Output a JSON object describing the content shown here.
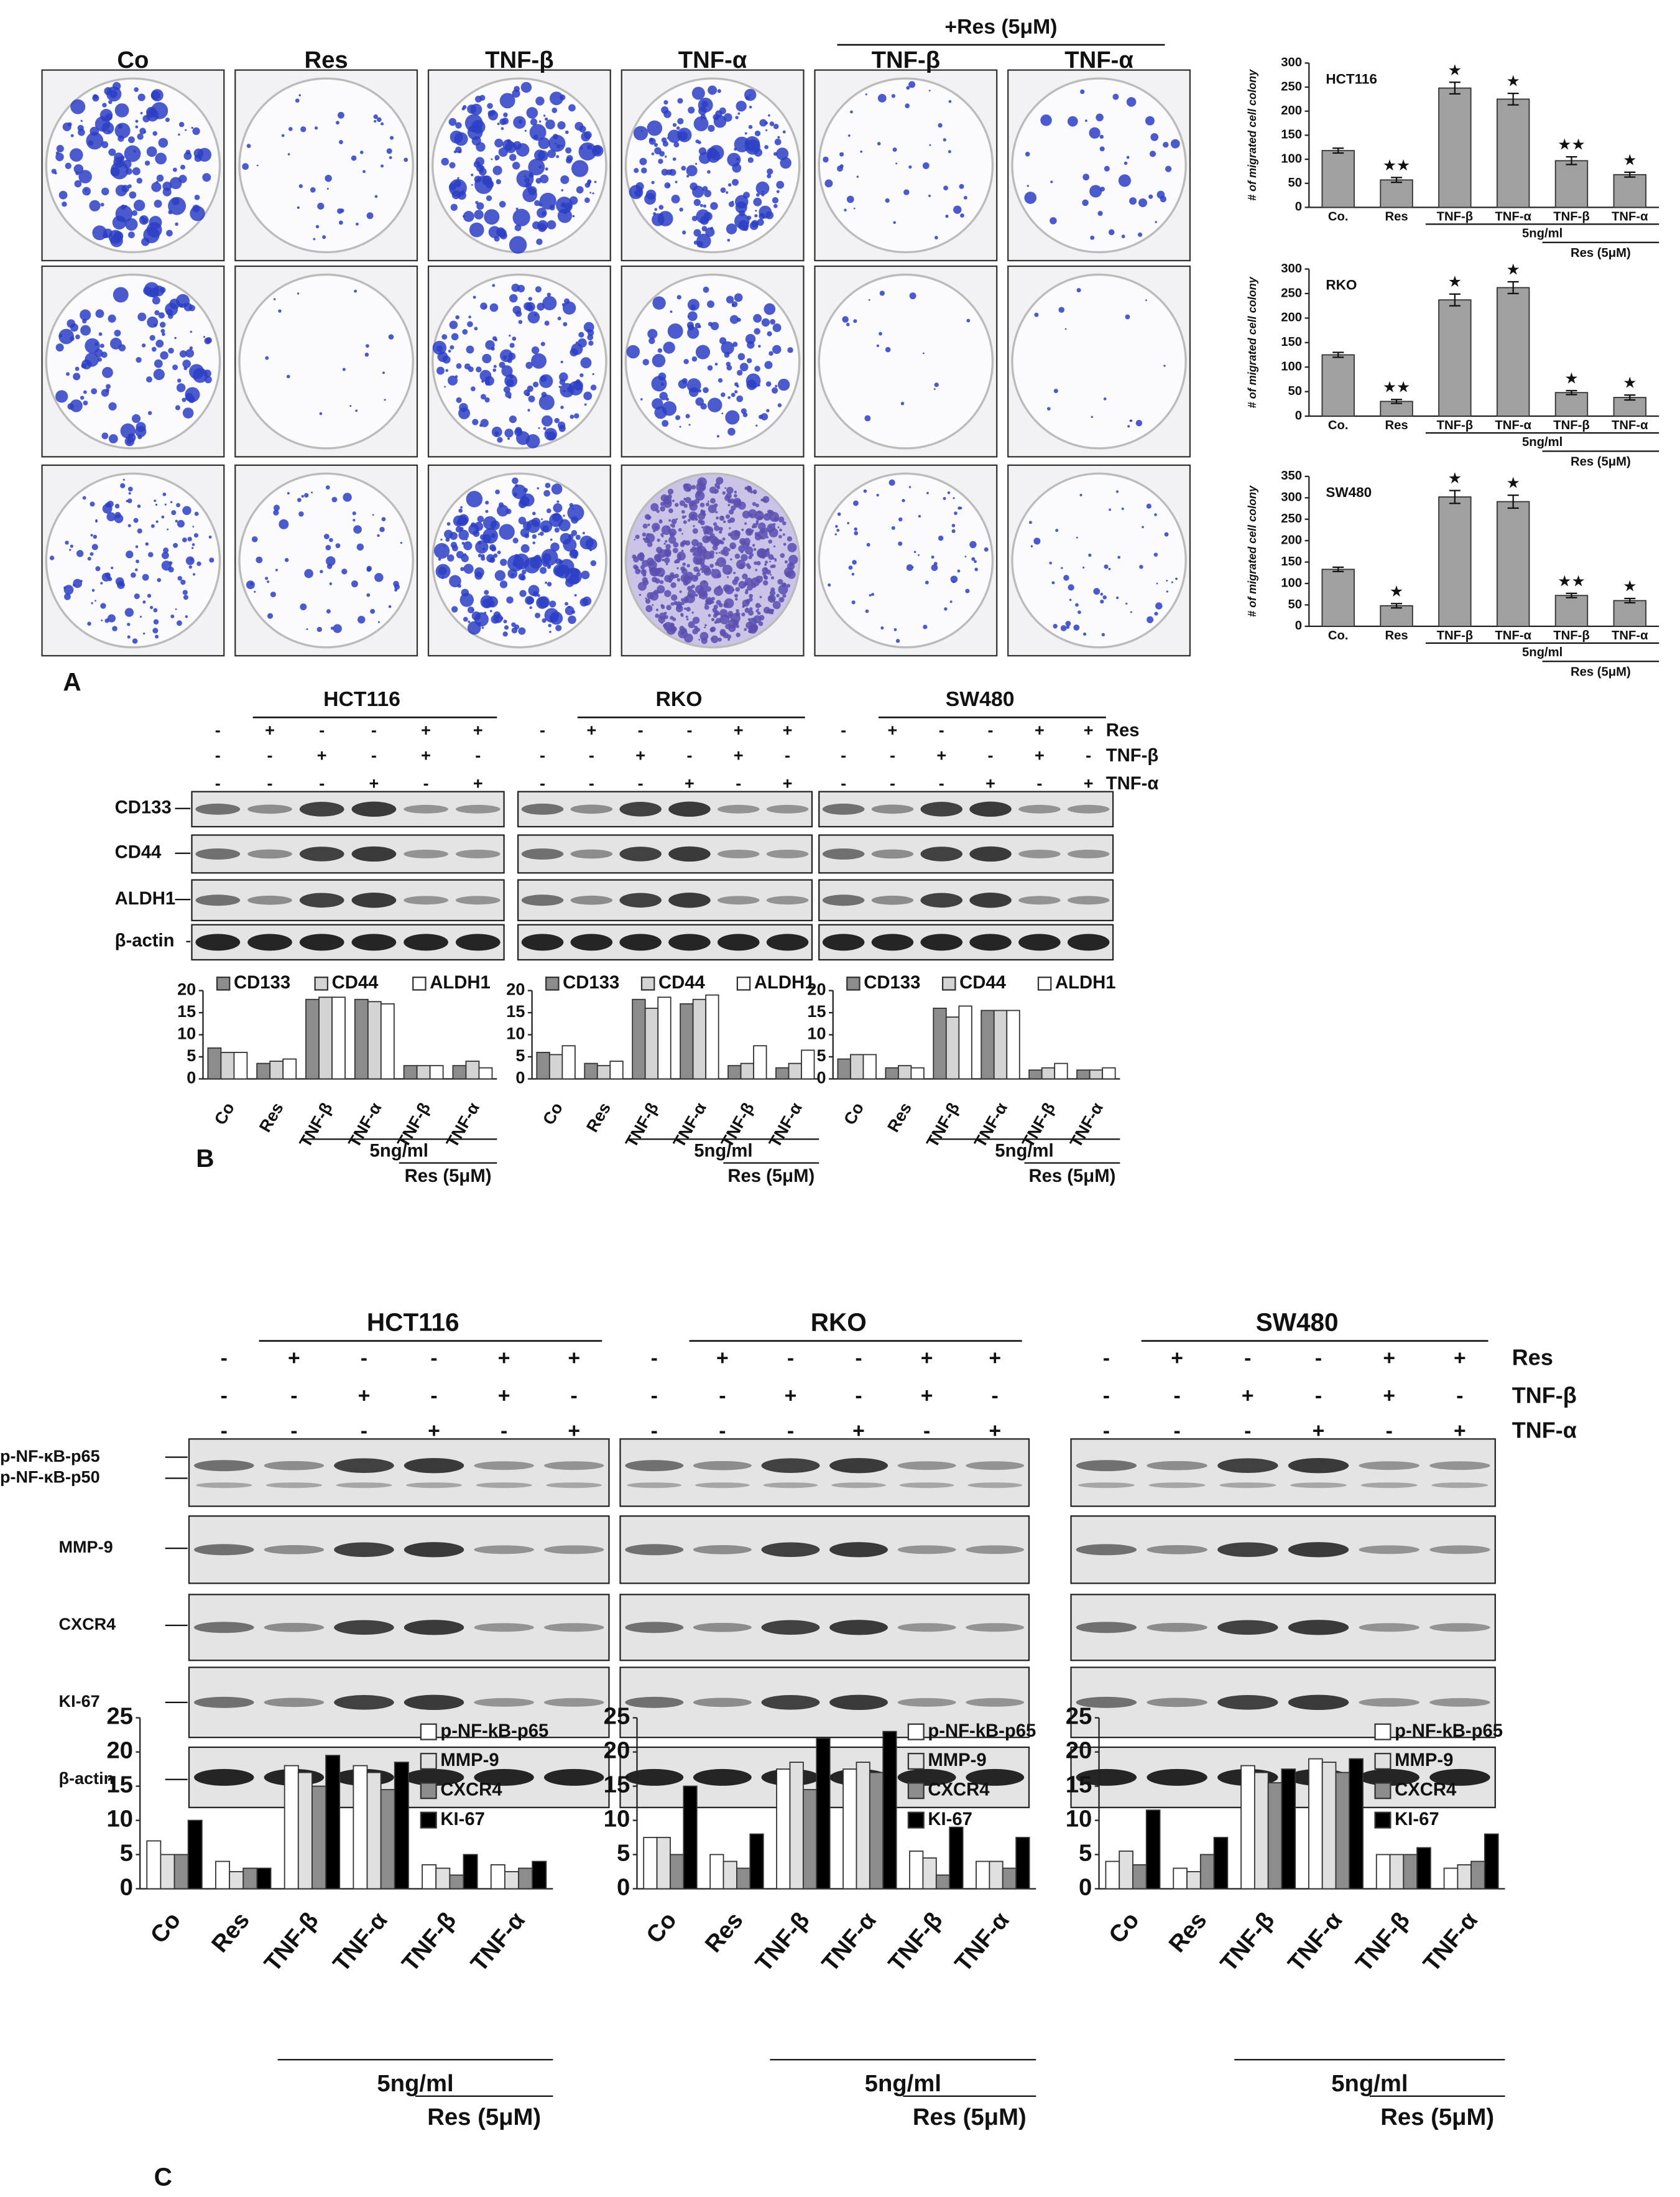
{
  "panel_labels": [
    "A",
    "B",
    "C"
  ],
  "colony_assay": {
    "columns": [
      "Co",
      "Res",
      "TNF-β",
      "TNF-α",
      "TNF-β",
      "TNF-α"
    ],
    "group_label": "+Res (5μM)"
  },
  "treatments": [
    {
      "name": "Res",
      "signs": [
        "-",
        "+",
        "-",
        "-",
        "+",
        "+"
      ]
    },
    {
      "name": "TNF-β",
      "signs": [
        "-",
        "-",
        "+",
        "-",
        "+",
        "-"
      ]
    },
    {
      "name": "TNF-α",
      "signs": [
        "-",
        "-",
        "-",
        "+",
        "-",
        "+"
      ]
    }
  ],
  "blot_b": {
    "cell_lines": [
      "HCT116",
      "RKO",
      "SW480"
    ],
    "proteins": [
      "CD133",
      "CD44",
      "ALDH1",
      "β-actin"
    ]
  },
  "blot_c": {
    "cell_lines": [
      "HCT116",
      "RKO",
      "SW480"
    ],
    "proteins": [
      "p-NF-κB-p65",
      "p-NF-κB-p50",
      "MMP-9",
      "CXCR4",
      "KI-67",
      "β-actin"
    ]
  },
  "chart_data": [
    {
      "type": "bar",
      "title": "HCT116",
      "y_label": "# of migrated cell colony",
      "categories": [
        "Co.",
        "Res",
        "TNF-β",
        "TNF-α",
        "TNF-β",
        "TNF-α"
      ],
      "values": [
        118,
        57,
        248,
        225,
        97,
        68
      ],
      "errors": [
        5,
        5,
        12,
        12,
        8,
        5
      ],
      "significance": [
        null,
        "★★",
        "★",
        "★",
        "★★",
        "★"
      ],
      "color": "#a0a0a0",
      "ylim": [
        0,
        300
      ],
      "yticks": [
        0,
        50,
        100,
        150,
        200,
        250,
        300
      ],
      "annotations": [
        "5ng/ml",
        "Res (5μM)"
      ]
    },
    {
      "type": "bar",
      "title": "RKO",
      "y_label": "# of migrated cell colony",
      "categories": [
        "Co.",
        "Res",
        "TNF-β",
        "TNF-α",
        "TNF-β",
        "TNF-α"
      ],
      "values": [
        125,
        30,
        237,
        262,
        48,
        38
      ],
      "errors": [
        5,
        4,
        12,
        12,
        4,
        5
      ],
      "significance": [
        null,
        "★★",
        "★",
        "★",
        "★",
        "★"
      ],
      "color": "#a0a0a0",
      "ylim": [
        0,
        300
      ],
      "yticks": [
        0,
        50,
        100,
        150,
        200,
        250,
        300
      ],
      "annotations": [
        "5ng/ml",
        "Res (5μM)"
      ]
    },
    {
      "type": "bar",
      "title": "SW480",
      "y_label": "# of migrated cell colony",
      "categories": [
        "Co.",
        "Res",
        "TNF-β",
        "TNF-α",
        "TNF-β",
        "TNF-α"
      ],
      "values": [
        133,
        48,
        302,
        291,
        72,
        60
      ],
      "errors": [
        5,
        5,
        15,
        15,
        5,
        5
      ],
      "significance": [
        null,
        "★",
        "★",
        "★",
        "★★",
        "★"
      ],
      "color": "#a0a0a0",
      "ylim": [
        0,
        350
      ],
      "yticks": [
        0,
        50,
        100,
        150,
        200,
        250,
        300,
        350
      ],
      "annotations": [
        "5ng/ml",
        "Res (5μM)"
      ]
    },
    {
      "type": "grouped_bar",
      "categories": [
        "Co",
        "Res",
        "TNF-β",
        "TNF-α",
        "TNF-β",
        "TNF-α"
      ],
      "series": [
        {
          "name": "CD133",
          "color": "#8c8c8c",
          "values": [
            7,
            3.5,
            18,
            18,
            3,
            3
          ]
        },
        {
          "name": "CD44",
          "color": "#d4d4d4",
          "values": [
            6,
            4,
            18.5,
            17.5,
            3,
            4
          ]
        },
        {
          "name": "ALDH1",
          "color": "#ffffff",
          "values": [
            6,
            4.5,
            18.5,
            17,
            3,
            2.5
          ]
        }
      ],
      "ylim": [
        0,
        20
      ],
      "yticks": [
        0,
        5,
        10,
        15,
        20
      ],
      "annotations": [
        "5ng/ml",
        "Res (5μM)"
      ]
    },
    {
      "type": "grouped_bar",
      "categories": [
        "Co",
        "Res",
        "TNF-β",
        "TNF-α",
        "TNF-β",
        "TNF-α"
      ],
      "series": [
        {
          "name": "CD133",
          "color": "#8c8c8c",
          "values": [
            6,
            3.5,
            18,
            17,
            3,
            2.5
          ]
        },
        {
          "name": "CD44",
          "color": "#d4d4d4",
          "values": [
            5.5,
            3,
            16,
            18,
            3.5,
            3.5
          ]
        },
        {
          "name": "ALDH1",
          "color": "#ffffff",
          "values": [
            7.5,
            4,
            18.5,
            19,
            7.5,
            6.5
          ]
        }
      ],
      "ylim": [
        0,
        20
      ],
      "yticks": [
        0,
        5,
        10,
        15,
        20
      ],
      "annotations": [
        "5ng/ml",
        "Res (5μM)"
      ]
    },
    {
      "type": "grouped_bar",
      "categories": [
        "Co",
        "Res",
        "TNF-β",
        "TNF-α",
        "TNF-β",
        "TNF-α"
      ],
      "series": [
        {
          "name": "CD133",
          "color": "#8c8c8c",
          "values": [
            4.5,
            2.5,
            16,
            15.5,
            2,
            2
          ]
        },
        {
          "name": "CD44",
          "color": "#d4d4d4",
          "values": [
            5.5,
            3,
            14,
            15.5,
            2.5,
            2
          ]
        },
        {
          "name": "ALDH1",
          "color": "#ffffff",
          "values": [
            5.5,
            2.5,
            16.5,
            15.5,
            3.5,
            2.5
          ]
        }
      ],
      "ylim": [
        0,
        20
      ],
      "yticks": [
        0,
        5,
        10,
        15,
        20
      ],
      "annotations": [
        "5ng/ml",
        "Res (5μM)"
      ]
    },
    {
      "type": "grouped_bar",
      "categories": [
        "Co",
        "Res",
        "TNF-β",
        "TNF-α",
        "TNF-β",
        "TNF-α"
      ],
      "series": [
        {
          "name": "p-NF-kB-p65",
          "color": "#ffffff",
          "values": [
            7,
            4,
            18,
            18,
            3.5,
            3.5
          ]
        },
        {
          "name": "MMP-9",
          "color": "#e0e0e0",
          "values": [
            5,
            2.5,
            17,
            17,
            3,
            2.5
          ]
        },
        {
          "name": "CXCR4",
          "color": "#8c8c8c",
          "values": [
            5,
            3,
            15,
            14.5,
            2,
            3
          ]
        },
        {
          "name": "KI-67",
          "color": "#000000",
          "values": [
            10,
            3,
            19.5,
            18.5,
            5,
            4
          ]
        }
      ],
      "ylim": [
        0,
        25
      ],
      "yticks": [
        0,
        5,
        10,
        15,
        20,
        25
      ],
      "annotations": [
        "5ng/ml",
        "Res (5μM)"
      ]
    },
    {
      "type": "grouped_bar",
      "categories": [
        "Co",
        "Res",
        "TNF-β",
        "TNF-α",
        "TNF-β",
        "TNF-α"
      ],
      "series": [
        {
          "name": "p-NF-kB-p65",
          "color": "#ffffff",
          "values": [
            7.5,
            5,
            17.5,
            17.5,
            5.5,
            4
          ]
        },
        {
          "name": "MMP-9",
          "color": "#e0e0e0",
          "values": [
            7.5,
            4,
            18.5,
            18.5,
            4.5,
            4
          ]
        },
        {
          "name": "CXCR4",
          "color": "#8c8c8c",
          "values": [
            5,
            3,
            14.5,
            17,
            2,
            3
          ]
        },
        {
          "name": "KI-67",
          "color": "#000000",
          "values": [
            15,
            8,
            22,
            23,
            9,
            7.5
          ]
        }
      ],
      "ylim": [
        0,
        25
      ],
      "yticks": [
        0,
        5,
        10,
        15,
        20,
        25
      ],
      "annotations": [
        "5ng/ml",
        "Res (5μM)"
      ]
    },
    {
      "type": "grouped_bar",
      "categories": [
        "Co",
        "Res",
        "TNF-β",
        "TNF-α",
        "TNF-β",
        "TNF-α"
      ],
      "series": [
        {
          "name": "p-NF-kB-p65",
          "color": "#ffffff",
          "values": [
            4,
            3,
            18,
            19,
            5,
            3
          ]
        },
        {
          "name": "MMP-9",
          "color": "#e0e0e0",
          "values": [
            5.5,
            2.5,
            17,
            18.5,
            5,
            3.5
          ]
        },
        {
          "name": "CXCR4",
          "color": "#8c8c8c",
          "values": [
            3.5,
            5,
            15.5,
            17,
            5,
            4
          ]
        },
        {
          "name": "KI-67",
          "color": "#000000",
          "values": [
            11.5,
            7.5,
            17.5,
            19,
            6,
            8
          ]
        }
      ],
      "ylim": [
        0,
        25
      ],
      "yticks": [
        0,
        5,
        10,
        15,
        20,
        25
      ],
      "annotations": [
        "5ng/ml",
        "Res (5μM)"
      ]
    }
  ]
}
